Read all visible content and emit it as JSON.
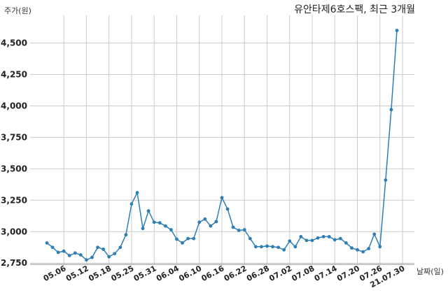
{
  "chart_data": {
    "type": "line",
    "title": "유안타제6호스팩, 최근 3개월",
    "ylabel": "주가(원)",
    "xlabel": "날짜(일)",
    "ylim": [
      2740,
      4720
    ],
    "yticks": [
      2750,
      3000,
      3250,
      3500,
      3750,
      4000,
      4250,
      4500
    ],
    "ytick_labels": [
      "2,750",
      "3,000",
      "3,250",
      "3,500",
      "3,750",
      "4,000",
      "4,250",
      "4,500"
    ],
    "xtick_labels": [
      "05.06",
      "05.12",
      "05.18",
      "05.25",
      "05.31",
      "06.04",
      "06.10",
      "06.16",
      "06.22",
      "06.28",
      "07.02",
      "07.08",
      "07.14",
      "07.20",
      "07.26",
      "21.07.30"
    ],
    "xtick_index": [
      3,
      7,
      11,
      15,
      19,
      23,
      27,
      31,
      35,
      39,
      43,
      47,
      51,
      55,
      59,
      63
    ],
    "grid": true,
    "line_color": "#2e7eb5",
    "values": [
      2910,
      2875,
      2835,
      2845,
      2810,
      2830,
      2815,
      2775,
      2795,
      2875,
      2860,
      2800,
      2825,
      2875,
      2975,
      3220,
      3310,
      3025,
      3165,
      3075,
      3070,
      3045,
      3015,
      2940,
      2910,
      2945,
      2945,
      3075,
      3100,
      3045,
      3080,
      3270,
      3180,
      3035,
      3010,
      3015,
      2945,
      2880,
      2880,
      2885,
      2880,
      2875,
      2855,
      2925,
      2880,
      2960,
      2930,
      2930,
      2950,
      2960,
      2960,
      2935,
      2945,
      2910,
      2870,
      2855,
      2840,
      2865,
      2980,
      2880,
      3410,
      3970,
      4600
    ]
  }
}
